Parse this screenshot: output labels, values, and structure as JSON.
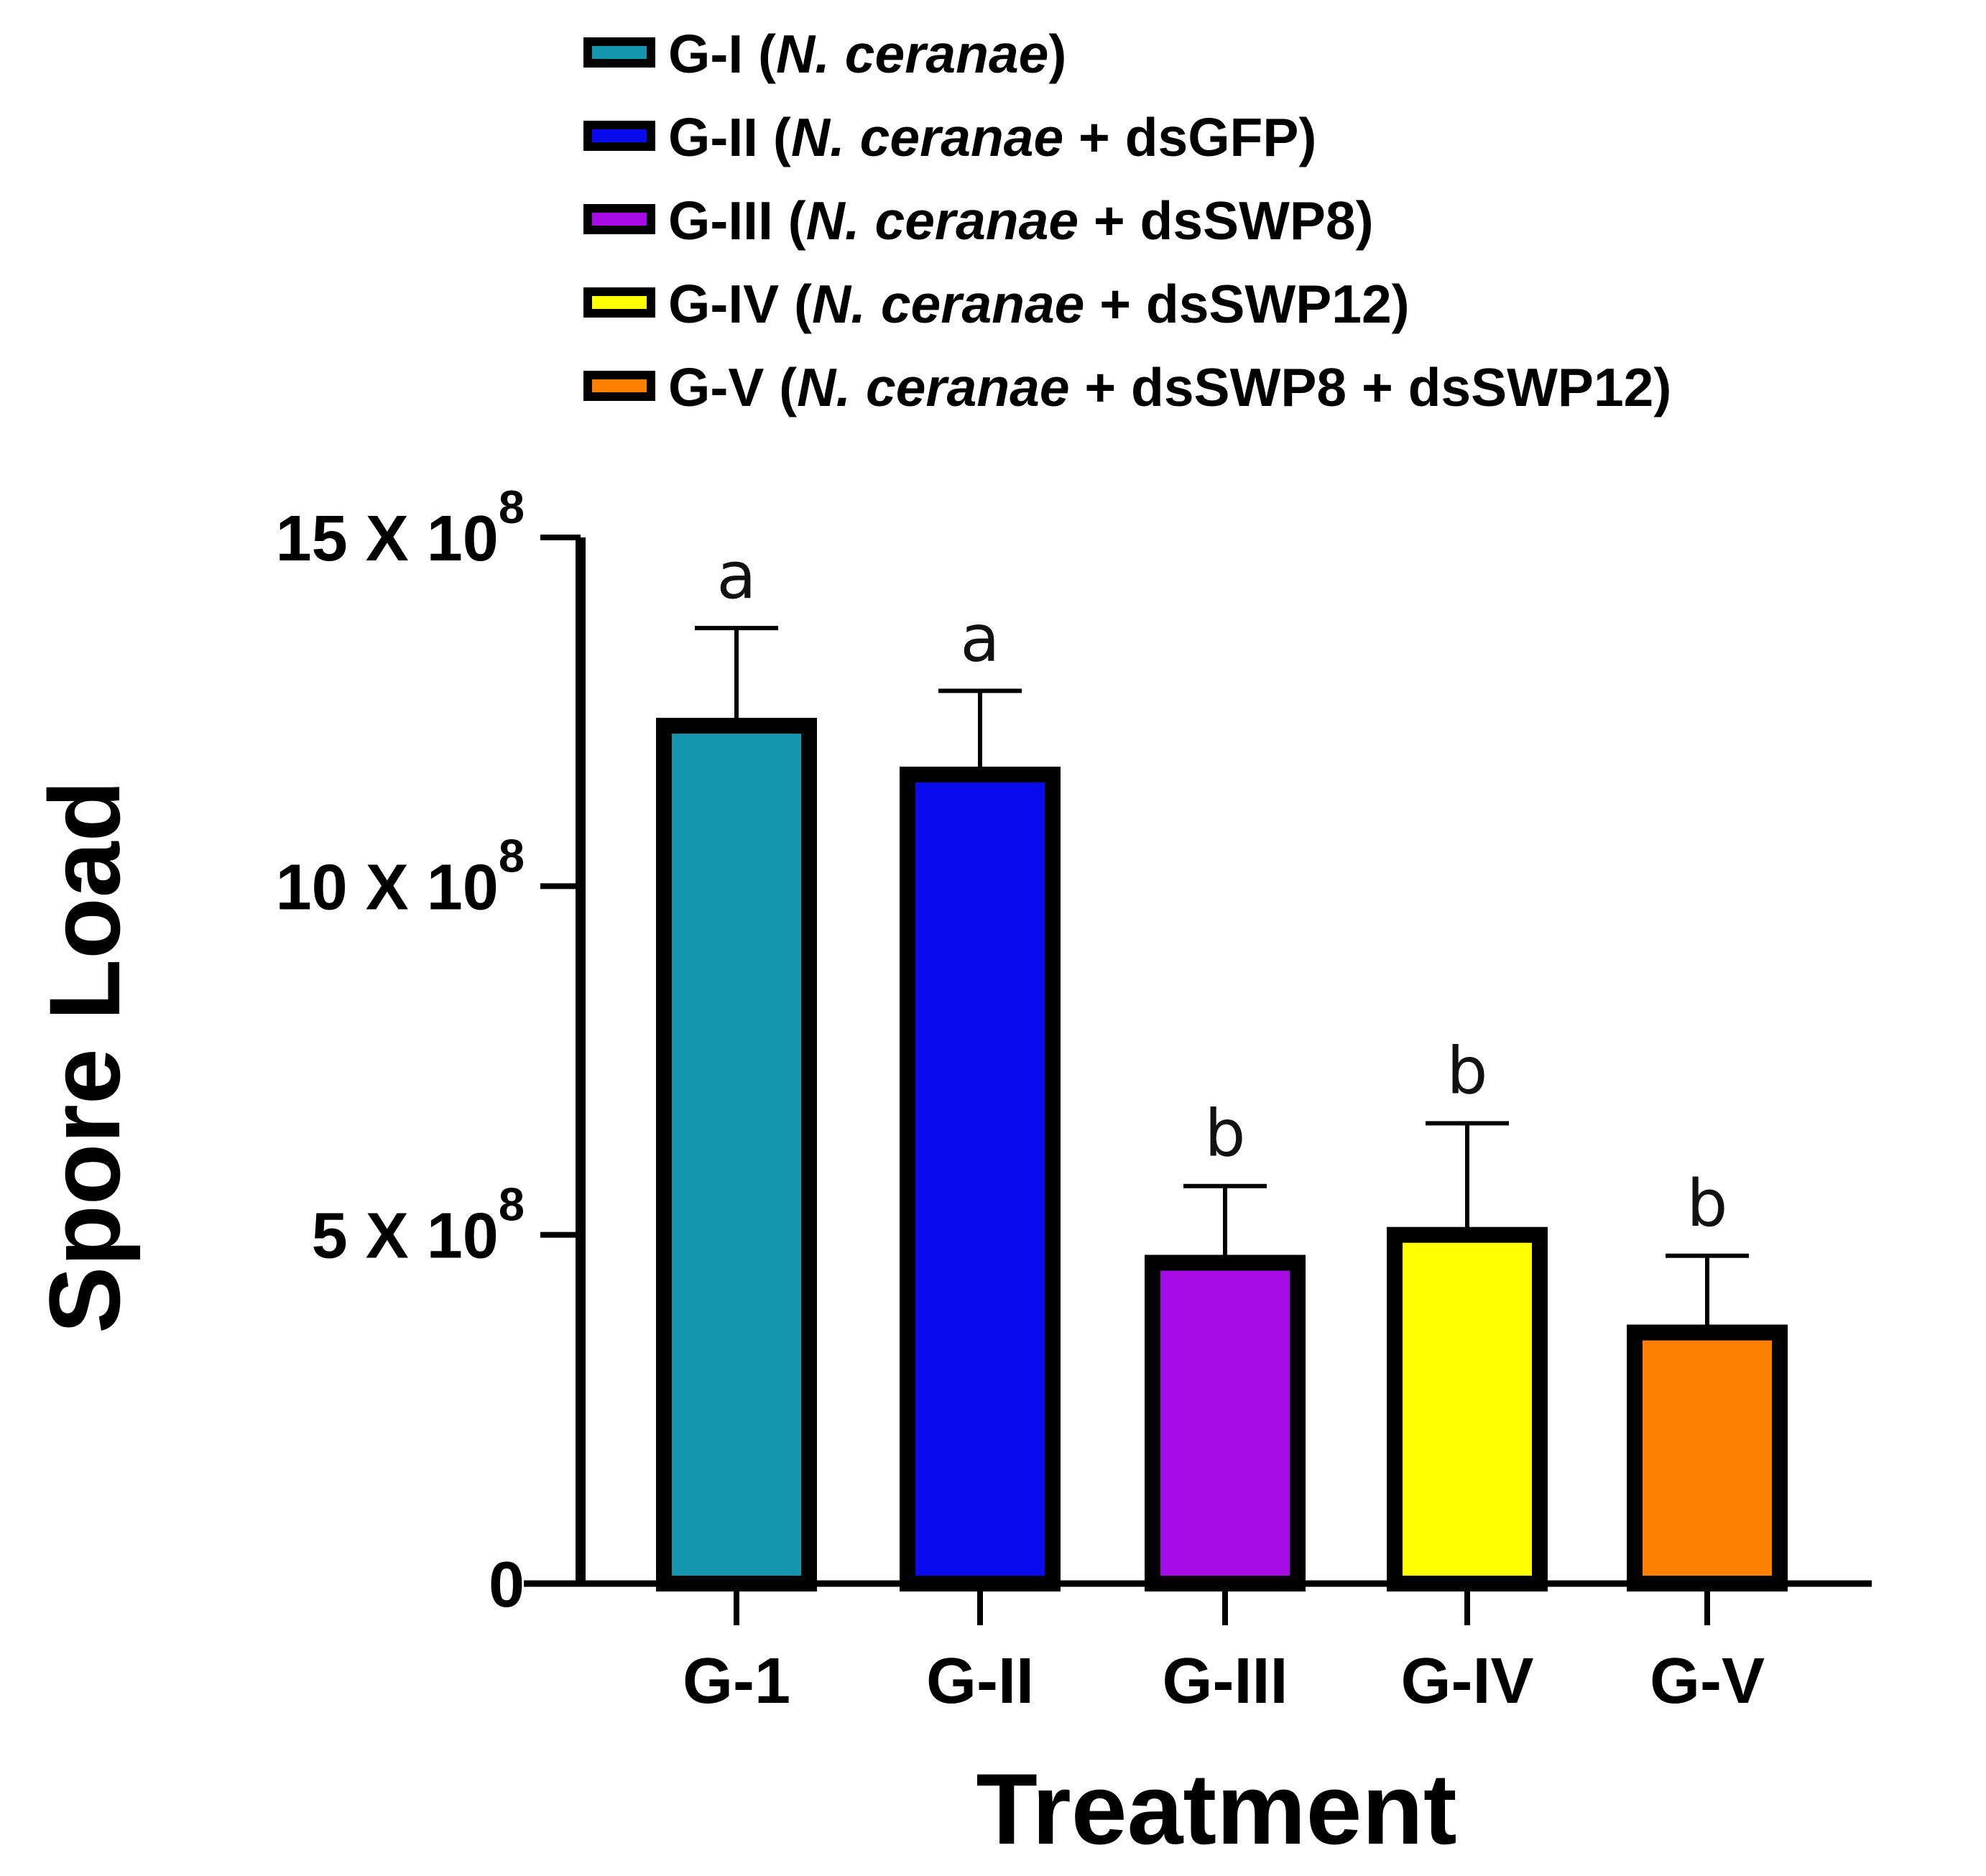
{
  "chart_data": {
    "type": "bar",
    "title": "",
    "xlabel": "Treatment",
    "ylabel": "Spore Load",
    "ylim": [
      0,
      15
    ],
    "y_unit_note": "values in units of 10^8",
    "yticks": [
      {
        "value": 0,
        "mantissa": "0",
        "exp": ""
      },
      {
        "value": 5,
        "mantissa": "5 X 10",
        "exp": "8"
      },
      {
        "value": 10,
        "mantissa": "10 X 10",
        "exp": "8"
      },
      {
        "value": 15,
        "mantissa": "15 X 10",
        "exp": "8"
      }
    ],
    "categories": [
      "G-1",
      "G-II",
      "G-III",
      "G-IV",
      "G-V"
    ],
    "values": [
      12.3,
      11.6,
      4.6,
      5.0,
      3.6
    ],
    "error_upper": [
      13.7,
      12.8,
      5.7,
      6.6,
      4.7
    ],
    "significance": [
      "a",
      "a",
      "b",
      "b",
      "b"
    ],
    "colors": [
      "#1497AE",
      "#0A0AEE",
      "#A60BE6",
      "#FFFF00",
      "#FF7F00"
    ],
    "legend": [
      {
        "prefix": "G-I (",
        "italic": "N. ceranae",
        "suffix": ")"
      },
      {
        "prefix": "G-II (",
        "italic": "N. ceranae",
        "suffix": " + dsGFP)"
      },
      {
        "prefix": "G-III (",
        "italic": "N. ceranae",
        "suffix": " + dsSWP8)"
      },
      {
        "prefix": "G-IV (",
        "italic": "N. ceranae",
        "suffix": " + dsSWP12)"
      },
      {
        "prefix": "G-V (",
        "italic": "N. ceranae",
        "suffix": " + dsSWP8 + dsSWP12)"
      }
    ],
    "legend_position": "top"
  }
}
